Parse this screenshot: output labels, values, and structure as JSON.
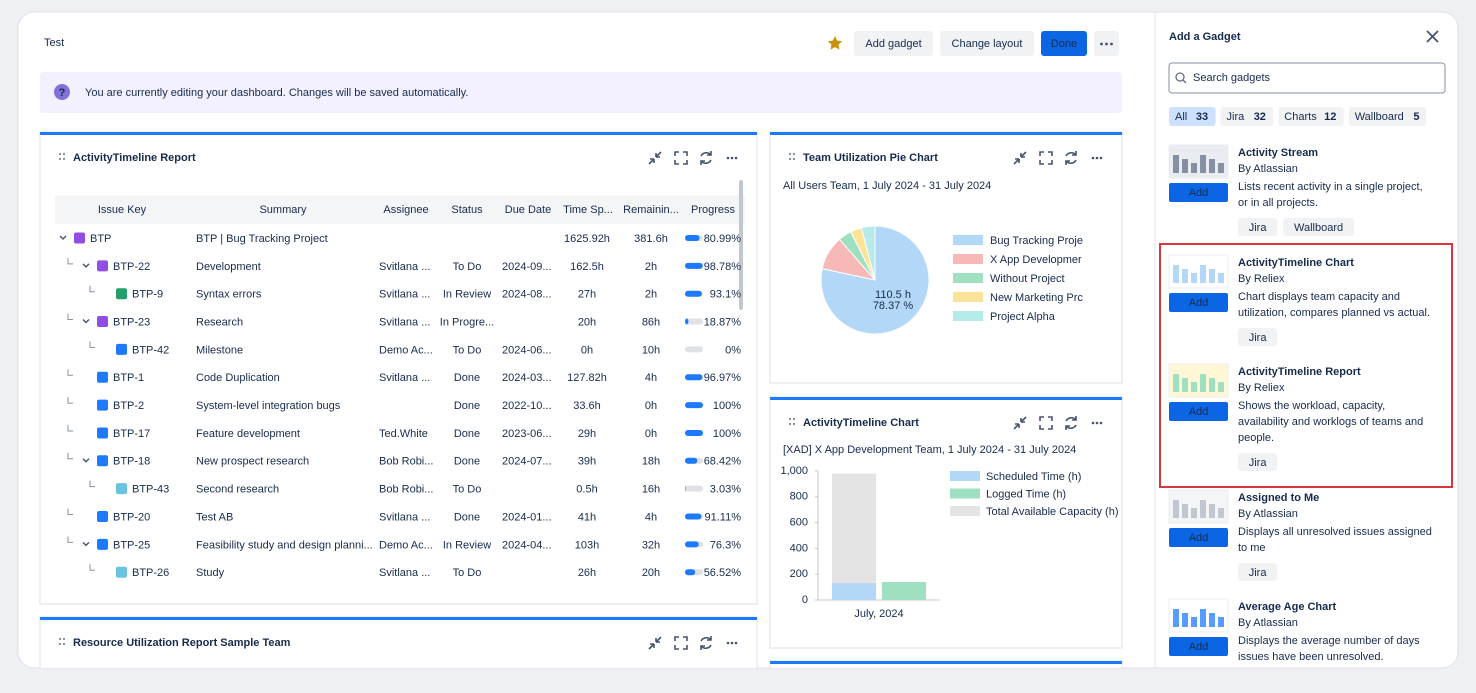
{
  "header": {
    "title": "Test",
    "buttons": [
      "Add gadget",
      "Change layout",
      "Done"
    ]
  },
  "banner": "You are currently editing your dashboard. Changes will be saved automatically.",
  "report": {
    "title": "ActivityTimeline Report",
    "columns": [
      "Issue Key",
      "Summary",
      "Assignee",
      "Status",
      "Due Date",
      "Time Sp...",
      "Remainin...",
      "Progress"
    ],
    "rows": [
      [
        "BTP",
        "BTP | Bug Tracking Project",
        null,
        null,
        null,
        "1625.92h",
        "381.6h",
        {
          "value": 80.99,
          "label": "80.99%"
        }
      ],
      [
        "BTP-22",
        "Development",
        "Svitlana ...",
        "To Do",
        "2024-09...",
        "162.5h",
        "2h",
        {
          "value": 98.78,
          "label": "98.78%"
        }
      ],
      [
        "BTP-9",
        "Syntax errors",
        "Svitlana ...",
        "In Review",
        "2024-08...",
        "27h",
        "2h",
        {
          "value": 93.1,
          "label": "93.1%"
        }
      ],
      [
        "BTP-23",
        "Research",
        "Svitlana ...",
        "In Progre...",
        null,
        "20h",
        "86h",
        {
          "value": 18.87,
          "label": "18.87%"
        }
      ],
      [
        "BTP-42",
        "Milestone",
        "Demo Ac...",
        "To Do",
        "2024-06...",
        "0h",
        "10h",
        {
          "value": 0,
          "label": "0%"
        }
      ],
      [
        "BTP-1",
        "Code Duplication",
        "Svitlana ...",
        "Done",
        "2024-03...",
        "127.82h",
        "4h",
        {
          "value": 96.97,
          "label": "96.97%"
        }
      ],
      [
        "BTP-2",
        "System-level integration bugs",
        null,
        "Done",
        "2022-10...",
        "33.6h",
        "0h",
        {
          "value": 100,
          "label": "100%"
        }
      ],
      [
        "BTP-17",
        "Feature development",
        "Ted.White",
        "Done",
        "2023-06...",
        "29h",
        "0h",
        {
          "value": 100,
          "label": "100%"
        }
      ],
      [
        "BTP-18",
        "New prospect research",
        "Bob Robi...",
        "Done",
        "2024-07...",
        "39h",
        "18h",
        {
          "value": 68.42,
          "label": "68.42%"
        }
      ],
      [
        "BTP-43",
        "Second research",
        "Bob Robi...",
        "To Do",
        null,
        "0.5h",
        "16h",
        {
          "value": 3.03,
          "label": "3.03%"
        }
      ],
      [
        "BTP-20",
        "Test AB",
        "Svitlana ...",
        "Done",
        "2024-01...",
        "41h",
        "4h",
        {
          "value": 91.11,
          "label": "91.11%"
        }
      ],
      [
        "BTP-25",
        "Feasibility study and design planni...",
        "Demo Ac...",
        "In Review",
        "2024-04...",
        "103h",
        "32h",
        {
          "value": 76.3,
          "label": "76.3%"
        }
      ],
      [
        "BTP-26",
        "Study",
        "Svitlana ...",
        "To Do",
        null,
        "26h",
        "20h",
        {
          "value": 56.52,
          "label": "56.52%"
        }
      ]
    ]
  },
  "chart_data": [
    {
      "type": "pie",
      "title": "Team Utilization Pie Chart",
      "subtitle": "All Users Team, 1 July 2024 - 31 July 2024",
      "categories": [
        "Bug Tracking Proje",
        "X App Developmer",
        "Without Project",
        "New Marketing Prc",
        "Project Alpha"
      ],
      "values": [
        78.37,
        10.2,
        4.0,
        3.4,
        4.03
      ],
      "colors": [
        "#b3d7f7",
        "#f7b8b8",
        "#9ee0c0",
        "#fbe49a",
        "#b5ebe9"
      ],
      "annotations": [
        "110.5 h",
        "78.37 %"
      ]
    },
    {
      "type": "bar",
      "title": "ActivityTimeline Chart",
      "subtitle": "[XAD] X App Development Team, 1 July 2024 - 31 July 2024",
      "categories": [
        "July, 2024"
      ],
      "series": [
        {
          "name": "Scheduled Time (h)",
          "color": "#b3d7f7",
          "values": [
            130
          ]
        },
        {
          "name": "Logged Time (h)",
          "color": "#9ee0c0",
          "values": [
            140
          ]
        },
        {
          "name": "Total Available Capacity (h)",
          "color": "#e4e4e4",
          "values": [
            980
          ]
        }
      ],
      "ylim": [
        0,
        1000
      ],
      "yticks": [
        0,
        200,
        400,
        600,
        800,
        {
          "value": 1000,
          "label": "1,000"
        }
      ]
    }
  ],
  "resource_report": {
    "title": "Resource Utilization Report Sample Team"
  },
  "sidebar": {
    "title": "Add a Gadget",
    "search_placeholder": "Search gadgets",
    "filters": [
      {
        "name": "All",
        "count": 33
      },
      {
        "name": "Jira",
        "count": 32
      },
      {
        "name": "Charts",
        "count": 12
      },
      {
        "name": "Wallboard",
        "count": 5
      }
    ],
    "gadgets": [
      {
        "name": "Activity Stream",
        "author": "By Atlassian",
        "button": "Add",
        "description": [
          "Lists recent activity in a single project,",
          "or in all projects."
        ],
        "tags": [
          "Jira",
          "Wallboard"
        ]
      },
      {
        "name": "ActivityTimeline Chart",
        "author": "By Reliex",
        "button": "Add",
        "description": [
          "Chart displays team capacity and",
          "utilization, compares planned vs actual."
        ],
        "tags": [
          "Jira"
        ]
      },
      {
        "name": "ActivityTimeline Report",
        "author": "By Reliex",
        "button": "Add",
        "description": [
          "Shows the workload, capacity,",
          "availability and worklogs of teams and",
          "people."
        ],
        "tags": [
          "Jira"
        ]
      },
      {
        "name": "Assigned to Me",
        "author": "By Atlassian",
        "button": "Add",
        "description": [
          "Displays all unresolved issues assigned",
          "to me"
        ],
        "tags": [
          "Jira"
        ]
      },
      {
        "name": "Average Age Chart",
        "author": "By Atlassian",
        "button": "Add",
        "description": [
          "Displays the average number of days",
          "issues have been unresolved."
        ],
        "tags": []
      }
    ]
  }
}
